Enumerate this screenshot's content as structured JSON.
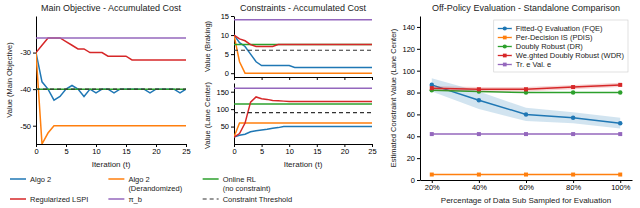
{
  "chart_data": [
    {
      "type": "line",
      "title": "Main Objective - Accumulated Cost",
      "xlabel": "Iteration (t)",
      "ylabel": "Value (Main Objective)",
      "x": [
        0,
        1,
        2,
        3,
        4,
        5,
        6,
        7,
        8,
        9,
        10,
        11,
        12,
        13,
        14,
        15,
        16,
        17,
        18,
        19,
        20,
        21,
        22,
        23,
        24,
        25
      ],
      "xlim": [
        0,
        25
      ],
      "xticks": [
        0,
        5,
        10,
        15,
        20,
        25
      ],
      "ylim": [
        -55,
        -20
      ],
      "yticks": [
        -50,
        -40,
        -30
      ],
      "grid": false,
      "legend": "bottom",
      "series": [
        {
          "name": "Algo 2",
          "values": [
            -30,
            -38,
            -40,
            -43,
            -42,
            -40,
            -39,
            -40,
            -42,
            -40,
            -41,
            -40,
            -40,
            -41,
            -40,
            -40,
            -40,
            -40,
            -40,
            -41,
            -40,
            -40,
            -40,
            -40,
            -41,
            -40
          ]
        },
        {
          "name": "Algo 2\n(Derandomized)",
          "values": [
            -30,
            -55,
            -52,
            -50,
            -50,
            -50,
            -50,
            -50,
            -50,
            -50,
            -50,
            -50,
            -50,
            -50,
            -50,
            -50,
            -50,
            -50,
            -50,
            -50,
            -50,
            -50,
            -50,
            -50,
            -50,
            -50
          ]
        },
        {
          "name": "Online RL\n(no constraint)",
          "values": [
            -40,
            -40,
            -40,
            -40,
            -40,
            -40,
            -40,
            -40,
            -40,
            -40,
            -40,
            -40,
            -40,
            -40,
            -40,
            -40,
            -40,
            -40,
            -40,
            -40,
            -40,
            -40,
            -40,
            -40,
            -40,
            -40
          ]
        },
        {
          "name": "Regularized LSPI",
          "values": [
            -30,
            -28,
            -26,
            -26,
            -26,
            -27,
            -28,
            -29,
            -29,
            -30,
            -30,
            -30,
            -31,
            -31,
            -31,
            -31,
            -32,
            -32,
            -32,
            -32,
            -32,
            -32,
            -32,
            -32,
            -32,
            -32
          ]
        },
        {
          "name": "π_b",
          "values": [
            -26,
            -26,
            -26,
            -26,
            -26,
            -26,
            -26,
            -26,
            -26,
            -26,
            -26,
            -26,
            -26,
            -26,
            -26,
            -26,
            -26,
            -26,
            -26,
            -26,
            -26,
            -26,
            -26,
            -26,
            -26,
            -26
          ]
        },
        {
          "name": "Constraint Threshold",
          "color": "#333333",
          "line_style": "dashed",
          "values": [
            -40,
            -40,
            -40,
            -40,
            -40,
            -40,
            -40,
            -40,
            -40,
            -40,
            -40,
            -40,
            -40,
            -40,
            -40,
            -40,
            -40,
            -40,
            -40,
            -40,
            -40,
            -40,
            -40,
            -40,
            -40,
            -40
          ]
        }
      ]
    },
    {
      "type": "line",
      "title": "Constraints - Accumulated Cost",
      "ylabel": "Value (Braking)",
      "x": [
        0,
        1,
        2,
        3,
        4,
        5,
        6,
        7,
        8,
        9,
        10,
        11,
        12,
        13,
        14,
        15,
        16,
        17,
        18,
        19,
        20,
        21,
        22,
        23,
        24,
        25
      ],
      "xlim": [
        0,
        25
      ],
      "xticks": [
        0,
        5,
        10,
        15,
        20,
        25
      ],
      "ylim": [
        -1,
        15
      ],
      "yticks": [
        0,
        5,
        10,
        15
      ],
      "tick_labels": "y",
      "grid": false,
      "series": [
        {
          "values": [
            10,
            8,
            7,
            5,
            3,
            2,
            2,
            2,
            2,
            2,
            2,
            1.5,
            1.5,
            1.5,
            1.5,
            1.5,
            1.5,
            1.5,
            1.5,
            1.5,
            1.5,
            1.5,
            1.5,
            1.5,
            1.5,
            1.5
          ]
        },
        {
          "values": [
            10,
            3,
            0,
            0,
            0,
            0,
            0,
            0,
            0,
            0,
            0,
            0,
            0,
            0,
            0,
            0,
            0,
            0,
            0,
            0,
            0,
            0,
            0,
            0,
            0,
            0
          ]
        },
        {
          "values": [
            7.5,
            7.5,
            7.5,
            7.5,
            7.5,
            7.5,
            7.5,
            7.5,
            7.5,
            7.5,
            7.5,
            7.5,
            7.5,
            7.5,
            7.5,
            7.5,
            7.5,
            7.5,
            7.5,
            7.5,
            7.5,
            7.5,
            7.5,
            7.5,
            7.5,
            7.5
          ]
        },
        {
          "values": [
            10,
            9,
            8.5,
            7.5,
            7,
            7,
            7,
            7,
            7.5,
            7.5,
            7.5,
            7.5,
            7.5,
            7.5,
            7.5,
            7.5,
            7.5,
            7.5,
            7.5,
            7.5,
            7.5,
            7.5,
            7.5,
            7.5,
            7.5,
            7.5
          ]
        },
        {
          "values": [
            14,
            14,
            14,
            14,
            14,
            14,
            14,
            14,
            14,
            14,
            14,
            14,
            14,
            14,
            14,
            14,
            14,
            14,
            14,
            14,
            14,
            14,
            14,
            14,
            14,
            14
          ]
        },
        {
          "color": "#333333",
          "line_style": "dashed",
          "values": [
            6,
            6,
            6,
            6,
            6,
            6,
            6,
            6,
            6,
            6,
            6,
            6,
            6,
            6,
            6,
            6,
            6,
            6,
            6,
            6,
            6,
            6,
            6,
            6,
            6,
            6
          ]
        }
      ]
    },
    {
      "type": "line",
      "xlabel": "Iteration (t)",
      "ylabel": "Value (Lane Center)",
      "x": [
        0,
        1,
        2,
        3,
        4,
        5,
        6,
        7,
        8,
        9,
        10,
        11,
        12,
        13,
        14,
        15,
        16,
        17,
        18,
        19,
        20,
        21,
        22,
        23,
        24,
        25
      ],
      "xlim": [
        0,
        25
      ],
      "xticks": [
        0,
        5,
        10,
        15,
        20,
        25
      ],
      "ylim": [
        0,
        175
      ],
      "yticks": [
        50,
        100,
        150
      ],
      "grid": false,
      "series": [
        {
          "values": [
            20,
            25,
            28,
            35,
            38,
            40,
            42,
            45,
            47,
            50,
            50,
            50,
            50,
            50,
            50,
            50,
            50,
            50,
            50,
            50,
            50,
            50,
            50,
            50,
            50,
            50
          ]
        },
        {
          "values": [
            20,
            60,
            60,
            60,
            60,
            60,
            60,
            60,
            60,
            60,
            60,
            60,
            60,
            60,
            60,
            60,
            60,
            60,
            60,
            60,
            60,
            60,
            60,
            60,
            60,
            60
          ]
        },
        {
          "values": [
            115,
            115,
            115,
            115,
            115,
            115,
            115,
            115,
            115,
            115,
            115,
            115,
            115,
            115,
            115,
            115,
            115,
            115,
            115,
            115,
            115,
            115,
            115,
            115,
            115,
            115
          ]
        },
        {
          "values": [
            20,
            30,
            60,
            120,
            135,
            130,
            128,
            125,
            124,
            123,
            122,
            122,
            122,
            122,
            122,
            122,
            122,
            122,
            122,
            122,
            122,
            122,
            122,
            122,
            122,
            122
          ]
        },
        {
          "values": [
            160,
            160,
            160,
            160,
            160,
            160,
            160,
            160,
            160,
            160,
            160,
            160,
            160,
            160,
            160,
            160,
            160,
            160,
            160,
            160,
            160,
            160,
            160,
            160,
            160,
            160
          ]
        },
        {
          "color": "#333333",
          "line_style": "dashed",
          "values": [
            90,
            90,
            90,
            90,
            90,
            90,
            90,
            90,
            90,
            90,
            90,
            90,
            90,
            90,
            90,
            90,
            90,
            90,
            90,
            90,
            90,
            90,
            90,
            90,
            90,
            90
          ]
        }
      ]
    },
    {
      "type": "line",
      "title": "Off-Policy Evaluation - Standalone Comparison",
      "xlabel": "Percentage of Data Sub Sampled for Evaluation",
      "ylabel": "Estimated Constraint Value (Lane Center)",
      "x": [
        0.2,
        0.4,
        0.6,
        0.8,
        1.0
      ],
      "xlim": [
        0.15,
        1.05
      ],
      "xticks": [
        {
          "value": 0.2,
          "label": "20%"
        },
        {
          "value": 0.4,
          "label": "40%"
        },
        {
          "value": 0.6,
          "label": "60%"
        },
        {
          "value": 0.8,
          "label": "80%"
        },
        {
          "value": 1.0,
          "label": "100%"
        }
      ],
      "ylim": [
        0,
        150
      ],
      "yticks": [
        0,
        20,
        40,
        60,
        80,
        100,
        120,
        140
      ],
      "grid": false,
      "legend": "upper right",
      "series": [
        {
          "name": "Fitted-Q Evaluation (FQE)",
          "marker": "circle",
          "values": [
            87,
            73,
            60,
            57,
            52
          ],
          "std": [
            6,
            8,
            6,
            5,
            5
          ]
        },
        {
          "name": "Per-Decision IS (PDIS)",
          "marker": "square",
          "values": [
            5,
            5,
            5,
            5,
            5
          ]
        },
        {
          "name": "Doubly Robust (DR)",
          "marker": "circle",
          "values": [
            82,
            81,
            80,
            80,
            80
          ]
        },
        {
          "name": "We.ghted Doubly Robust (WDR)",
          "marker": "square",
          "values": [
            84,
            83,
            83,
            85,
            87
          ],
          "std": [
            2,
            2,
            2,
            2,
            2
          ]
        },
        {
          "name": "Tr. e Val. e",
          "marker": "square",
          "values": [
            42,
            42,
            42,
            42,
            42
          ]
        }
      ]
    }
  ]
}
